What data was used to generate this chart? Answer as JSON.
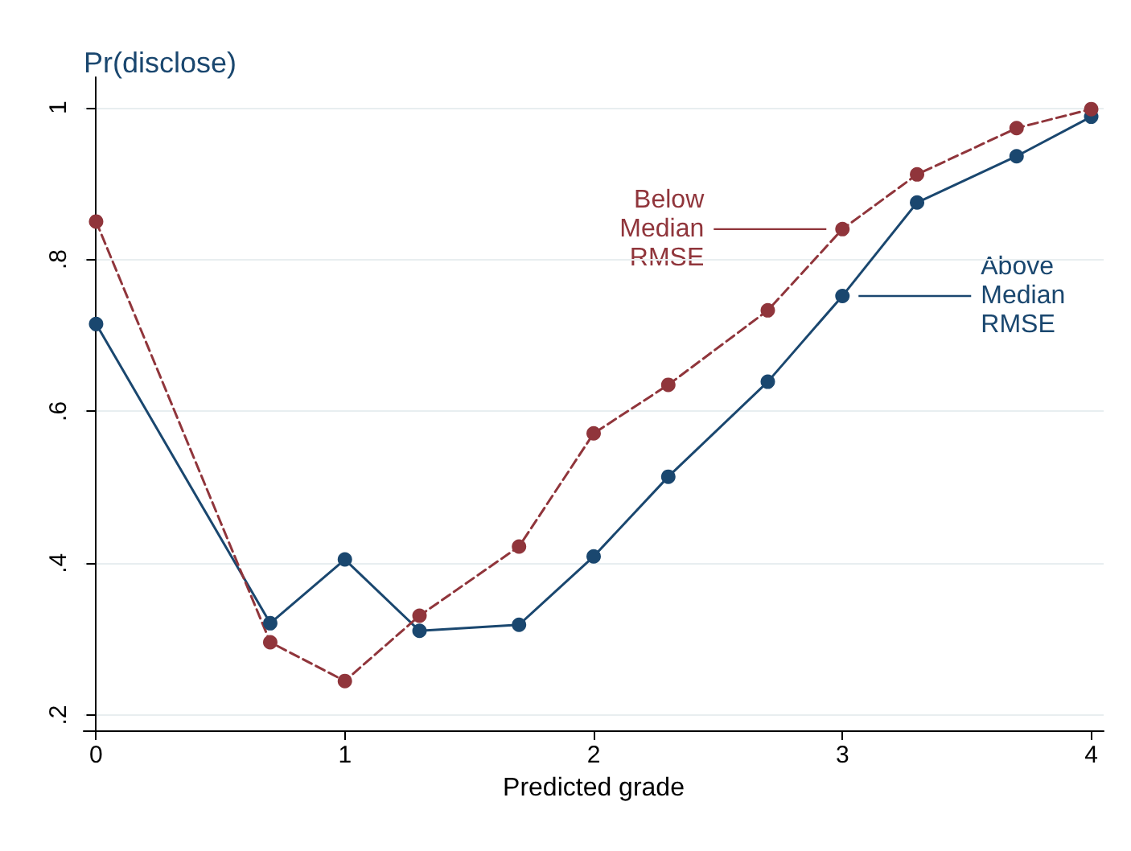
{
  "chart_data": {
    "type": "line",
    "ylabel": "Pr(disclose)",
    "xlabel": "Predicted grade",
    "x": [
      0,
      0.7,
      1,
      1.3,
      1.7,
      2,
      2.3,
      2.7,
      3,
      3.3,
      3.7,
      4
    ],
    "series": [
      {
        "name": "Above\nMedian\nRMSE",
        "color": "#1a476f",
        "line_style": "solid",
        "values": [
          0.715,
          0.321,
          0.405,
          0.311,
          0.319,
          0.409,
          0.514,
          0.639,
          0.752,
          0.875,
          0.936,
          0.988
        ]
      },
      {
        "name": "Below\nMedian\nRMSE",
        "color": "#90353b",
        "line_style": "dashed",
        "values": [
          0.85,
          0.296,
          0.245,
          0.331,
          0.422,
          0.571,
          0.635,
          0.733,
          0.84,
          0.912,
          0.973,
          0.998
        ]
      }
    ],
    "xlim": [
      -0.05,
      4.05
    ],
    "xticks": [
      0,
      1,
      2,
      3,
      4
    ],
    "ylim": [
      0.18,
      1.04
    ],
    "yticks": [
      {
        "value": 0.2,
        "label": ".2"
      },
      {
        "value": 0.4,
        "label": ".4"
      },
      {
        "value": 0.6,
        "label": ".6"
      },
      {
        "value": 0.8,
        "label": ".8"
      },
      1
    ],
    "grid": "y",
    "marker": "circle",
    "legend": "right"
  }
}
